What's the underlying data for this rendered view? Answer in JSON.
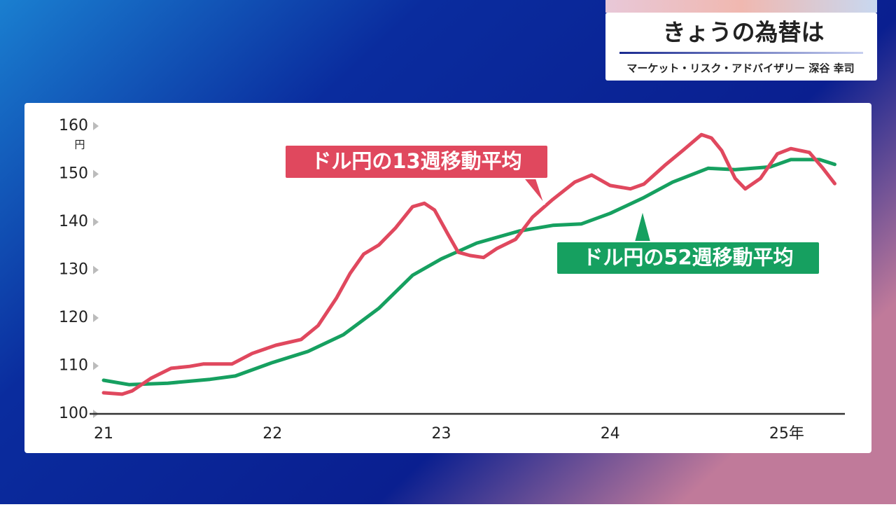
{
  "header": {
    "title": "きょうの為替は",
    "subtitle": "マーケット・リスク・アドバイザリー 深谷 幸司"
  },
  "chart_data": {
    "type": "line",
    "y_unit": "円",
    "xlim": [
      2021,
      2025.39
    ],
    "xticks": [
      {
        "value": 2021,
        "label": "21"
      },
      {
        "value": 2022,
        "label": "22"
      },
      {
        "value": 2023,
        "label": "23"
      },
      {
        "value": 2024,
        "label": "24"
      },
      {
        "value": 2025,
        "label": "25年"
      }
    ],
    "ylim": [
      100,
      160
    ],
    "yticks": [
      100,
      110,
      120,
      130,
      140,
      150,
      160
    ],
    "series": [
      {
        "name": "ドル円の13週移動平均",
        "color": "#e0485e",
        "x": [
          2021.0,
          2021.11,
          2021.17,
          2021.28,
          2021.4,
          2021.51,
          2021.59,
          2021.76,
          2021.88,
          2022.02,
          2022.17,
          2022.27,
          2022.38,
          2022.46,
          2022.54,
          2022.63,
          2022.73,
          2022.83,
          2022.9,
          2022.96,
          2023.04,
          2023.1,
          2023.17,
          2023.25,
          2023.33,
          2023.44,
          2023.54,
          2023.66,
          2023.79,
          2023.89,
          2024.0,
          2024.12,
          2024.2,
          2024.33,
          2024.43,
          2024.54,
          2024.6,
          2024.66,
          2024.74,
          2024.8,
          2024.89,
          2024.99,
          2025.07,
          2025.18,
          2025.26,
          2025.33
        ],
        "values": [
          104.4,
          104.1,
          104.8,
          107.4,
          109.5,
          109.9,
          110.4,
          110.4,
          112.6,
          114.3,
          115.5,
          118.4,
          124.2,
          129.3,
          133.3,
          135.2,
          138.8,
          143.2,
          143.9,
          142.5,
          137.4,
          133.7,
          133.0,
          132.6,
          134.5,
          136.4,
          141.0,
          144.7,
          148.3,
          149.8,
          147.6,
          146.9,
          147.9,
          152.0,
          154.9,
          158.2,
          157.5,
          154.9,
          149.1,
          146.9,
          149.1,
          154.2,
          155.3,
          154.5,
          151.2,
          148.0
        ]
      },
      {
        "name": "ドル円の52週移動平均",
        "color": "#16a060",
        "x": [
          2021.0,
          2021.15,
          2021.38,
          2021.63,
          2021.78,
          2022.0,
          2022.21,
          2022.42,
          2022.63,
          2022.83,
          2023.0,
          2023.21,
          2023.46,
          2023.66,
          2023.83,
          2024.0,
          2024.2,
          2024.37,
          2024.58,
          2024.74,
          2024.95,
          2025.07,
          2025.24,
          2025.33
        ],
        "values": [
          107.0,
          106.1,
          106.4,
          107.2,
          107.9,
          110.7,
          113.0,
          116.5,
          122.0,
          128.9,
          132.3,
          135.6,
          138.1,
          139.3,
          139.6,
          141.8,
          145.1,
          148.3,
          151.2,
          150.9,
          151.5,
          153.0,
          153.0,
          152.0
        ]
      }
    ]
  }
}
